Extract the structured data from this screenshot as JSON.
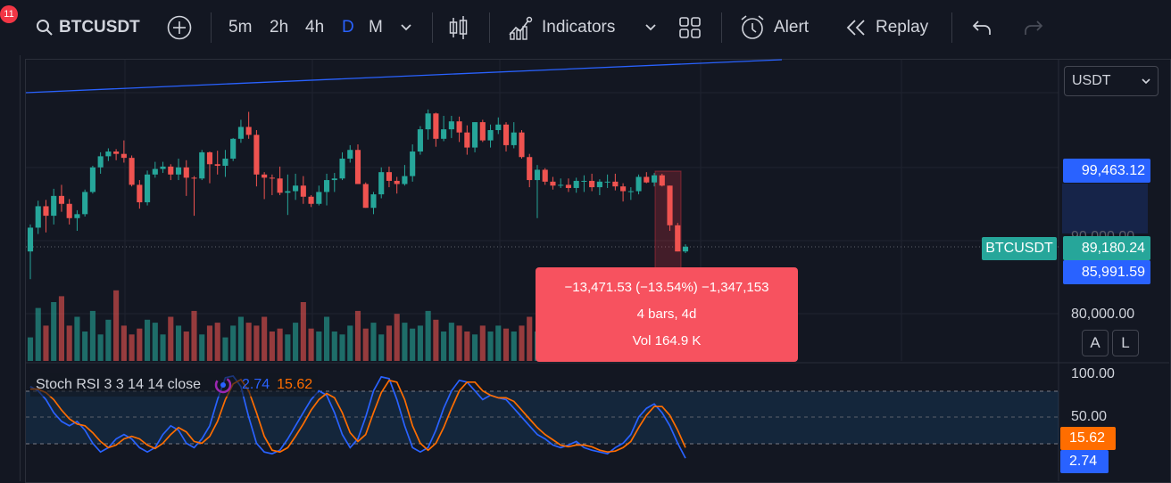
{
  "toolbar": {
    "notification_count": "11",
    "symbol": "BTCUSDT",
    "intervals": [
      "5m",
      "2h",
      "4h",
      "D",
      "M"
    ],
    "active_interval": "D",
    "indicators_label": "Indicators",
    "alert_label": "Alert",
    "replay_label": "Replay"
  },
  "colors": {
    "accent": "#2962ff",
    "up": "#26a69a",
    "down": "#ef5350",
    "tooltip": "#f7525f",
    "stoch_k": "#2962ff",
    "stoch_d": "#ff6d00"
  },
  "icons": [
    "search-icon",
    "add-symbol-icon",
    "chevron-down-icon",
    "candles-icon",
    "indicators-icon",
    "layouts-icon",
    "alarm-clock-icon",
    "replay-icon",
    "undo-icon",
    "redo-icon"
  ],
  "price_axis": {
    "currency": "USDT",
    "high_label": "99,463.12",
    "hidden_label": "90,000.00",
    "symbol_tag": "BTCUSDT",
    "last_price": "89,180.24",
    "low_label": "85,991.59",
    "level_80k": "80,000.00",
    "auto_btn": "A",
    "log_btn": "L"
  },
  "measure_tooltip": {
    "line1": "−13,471.53 (−13.54%) −1,347,153",
    "line2": "4 bars, 4d",
    "line3": "Vol 164.9 K"
  },
  "stoch": {
    "title": "Stoch RSI 3 3 14 14 close",
    "k_value": "2.74",
    "d_value": "15.62",
    "axis_100": "100.00",
    "axis_50": "50.00",
    "d_tag": "15.62",
    "k_tag": "2.74"
  },
  "chart_data": {
    "type": "candlestick",
    "title": "",
    "last": 89180.24,
    "ohlc": [
      [
        88.6,
        92.0,
        85.1,
        91.6
      ],
      [
        91.6,
        95.0,
        90.8,
        94.3
      ],
      [
        94.3,
        95.1,
        91.0,
        93.1
      ],
      [
        93.1,
        96.5,
        92.0,
        95.6
      ],
      [
        95.6,
        97.0,
        93.6,
        94.6
      ],
      [
        94.6,
        95.2,
        92.0,
        92.8
      ],
      [
        92.8,
        93.8,
        91.2,
        93.3
      ],
      [
        93.3,
        96.4,
        93.0,
        96.1
      ],
      [
        96.1,
        99.4,
        95.9,
        99.2
      ],
      [
        99.2,
        101.1,
        98.4,
        100.6
      ],
      [
        100.6,
        101.6,
        100.0,
        101.2
      ],
      [
        101.2,
        101.5,
        100.1,
        100.9
      ],
      [
        100.9,
        102.6,
        99.8,
        100.4
      ],
      [
        100.4,
        100.7,
        96.8,
        97.0
      ],
      [
        97.0,
        97.6,
        94.0,
        94.8
      ],
      [
        94.8,
        98.8,
        94.4,
        98.3
      ],
      [
        98.3,
        99.9,
        97.9,
        99.0
      ],
      [
        99.0,
        99.9,
        98.5,
        99.3
      ],
      [
        99.3,
        99.6,
        97.6,
        98.3
      ],
      [
        98.3,
        100.3,
        97.6,
        99.2
      ],
      [
        99.2,
        100.1,
        95.6,
        97.9
      ],
      [
        97.9,
        98.1,
        93.1,
        97.8
      ],
      [
        97.8,
        101.4,
        97.6,
        101.1
      ],
      [
        101.1,
        101.2,
        97.2,
        99.6
      ],
      [
        99.6,
        101.3,
        98.3,
        99.4
      ],
      [
        99.4,
        101.4,
        98.0,
        100.3
      ],
      [
        100.3,
        102.9,
        100.0,
        102.8
      ],
      [
        102.8,
        105.2,
        102.3,
        104.3
      ],
      [
        104.3,
        106.2,
        102.8,
        103.3
      ],
      [
        103.3,
        103.9,
        96.8,
        98.3
      ],
      [
        98.3,
        98.6,
        95.2,
        97.9
      ],
      [
        97.9,
        98.3,
        95.7,
        97.8
      ],
      [
        97.8,
        99.3,
        95.7,
        96.0
      ],
      [
        96.0,
        98.3,
        93.2,
        96.2
      ],
      [
        96.2,
        98.4,
        95.1,
        96.9
      ],
      [
        96.9,
        98.1,
        94.6,
        95.5
      ],
      [
        95.5,
        95.7,
        94.2,
        94.6
      ],
      [
        94.6,
        96.9,
        94.4,
        96.1
      ],
      [
        96.1,
        98.4,
        94.4,
        97.6
      ],
      [
        97.6,
        98.5,
        96.1,
        97.8
      ],
      [
        97.8,
        101.1,
        97.6,
        100.3
      ],
      [
        100.3,
        102.0,
        99.8,
        101.4
      ],
      [
        101.4,
        102.1,
        97.1,
        97.1
      ],
      [
        97.1,
        97.3,
        94.1,
        94.1
      ],
      [
        94.1,
        96.1,
        93.3,
        95.8
      ],
      [
        95.8,
        99.2,
        95.3,
        98.6
      ],
      [
        98.6,
        99.3,
        96.7,
        97.5
      ],
      [
        97.5,
        98.0,
        95.9,
        97.1
      ],
      [
        97.1,
        99.5,
        96.9,
        98.1
      ],
      [
        98.1,
        102.1,
        97.4,
        101.2
      ],
      [
        101.2,
        104.4,
        100.8,
        104.0
      ],
      [
        104.0,
        106.5,
        102.7,
        106.0
      ],
      [
        106.0,
        106.1,
        101.8,
        102.8
      ],
      [
        102.8,
        105.7,
        102.5,
        104.0
      ],
      [
        104.0,
        105.7,
        102.9,
        105.0
      ],
      [
        105.0,
        105.6,
        102.4,
        103.6
      ],
      [
        103.6,
        104.5,
        100.8,
        101.7
      ],
      [
        101.7,
        104.9,
        101.1,
        104.9
      ],
      [
        104.9,
        105.2,
        102.4,
        102.6
      ],
      [
        102.6,
        104.6,
        101.7,
        103.9
      ],
      [
        103.9,
        105.5,
        103.4,
        104.6
      ],
      [
        104.6,
        104.9,
        101.2,
        102.0
      ],
      [
        102.0,
        104.9,
        101.6,
        103.6
      ],
      [
        103.6,
        103.9,
        100.3,
        100.5
      ],
      [
        100.5,
        100.9,
        96.7,
        97.6
      ],
      [
        97.6,
        99.5,
        92.8,
        98.9
      ],
      [
        98.9,
        99.1,
        97.0,
        97.4
      ],
      [
        97.4,
        98.0,
        96.4,
        96.9
      ],
      [
        96.9,
        97.8,
        96.6,
        97.0
      ],
      [
        97.0,
        97.8,
        96.1,
        96.6
      ],
      [
        96.6,
        97.9,
        96.0,
        97.5
      ],
      [
        97.5,
        98.2,
        96.1,
        97.5
      ],
      [
        97.5,
        98.4,
        96.2,
        96.7
      ],
      [
        96.7,
        97.7,
        95.7,
        97.4
      ],
      [
        97.4,
        98.3,
        96.6,
        97.4
      ],
      [
        97.4,
        98.4,
        96.3,
        96.8
      ],
      [
        96.8,
        97.2,
        94.9,
        96.2
      ],
      [
        96.2,
        96.7,
        95.1,
        96.2
      ],
      [
        96.2,
        98.3,
        95.8,
        98.0
      ],
      [
        98.0,
        98.6,
        97.2,
        97.3
      ],
      [
        97.3,
        98.5,
        96.8,
        98.2
      ],
      [
        98.2,
        98.4,
        96.8,
        96.9
      ],
      [
        96.9,
        96.9,
        91.2,
        91.9
      ],
      [
        91.9,
        92.2,
        88.6,
        88.6
      ],
      [
        88.6,
        89.5,
        88.4,
        89.2
      ]
    ],
    "volume": [
      8,
      18,
      12,
      20,
      22,
      12,
      15,
      10,
      17,
      9,
      14,
      24,
      12,
      9,
      11,
      14,
      13,
      9,
      15,
      12,
      10,
      17,
      9,
      12,
      13,
      8,
      12,
      15,
      13,
      12,
      15,
      10,
      11,
      9,
      13,
      20,
      11,
      10,
      15,
      10,
      9,
      12,
      17,
      11,
      13,
      9,
      12,
      16,
      13,
      11,
      12,
      17,
      14,
      10,
      13,
      12,
      10,
      9,
      12,
      10,
      12,
      11,
      10,
      12,
      15,
      10,
      12,
      13,
      12,
      13,
      11,
      10,
      12,
      10,
      9,
      11,
      13,
      12,
      14,
      11,
      10,
      12,
      13,
      11,
      9
    ],
    "stoch_k": [
      85,
      80,
      70,
      55,
      45,
      40,
      45,
      35,
      20,
      10,
      15,
      25,
      30,
      25,
      15,
      10,
      15,
      30,
      40,
      35,
      20,
      15,
      25,
      40,
      70,
      95,
      97,
      85,
      50,
      20,
      10,
      8,
      12,
      25,
      40,
      55,
      70,
      80,
      75,
      55,
      30,
      15,
      25,
      50,
      80,
      96,
      94,
      70,
      40,
      15,
      10,
      15,
      35,
      60,
      80,
      92,
      90,
      80,
      70,
      75,
      72,
      70,
      60,
      50,
      40,
      30,
      25,
      18,
      15,
      18,
      22,
      15,
      12,
      10,
      8,
      15,
      20,
      30,
      50,
      60,
      65,
      55,
      40,
      20,
      3
    ],
    "stoch_d": [
      82,
      82,
      78,
      70,
      58,
      48,
      42,
      40,
      32,
      22,
      15,
      18,
      25,
      28,
      25,
      18,
      14,
      20,
      30,
      38,
      33,
      22,
      20,
      28,
      45,
      70,
      88,
      93,
      80,
      55,
      28,
      12,
      10,
      15,
      28,
      42,
      58,
      70,
      77,
      72,
      55,
      32,
      22,
      30,
      55,
      78,
      92,
      90,
      70,
      40,
      20,
      12,
      20,
      38,
      60,
      80,
      90,
      90,
      80,
      75,
      72,
      72,
      68,
      58,
      48,
      38,
      30,
      24,
      18,
      16,
      18,
      18,
      16,
      12,
      10,
      11,
      15,
      22,
      38,
      52,
      62,
      62,
      52,
      35,
      15
    ],
    "volume_axis_hidden": true
  }
}
